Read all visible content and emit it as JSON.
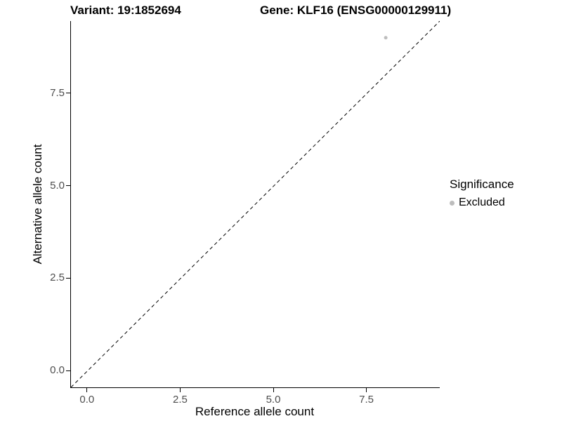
{
  "chart_data": {
    "type": "scatter",
    "title_left": "Variant: 19:1852694",
    "title_right": "Gene: KLF16 (ENSG00000129911)",
    "xlabel": "Reference allele count",
    "ylabel": "Alternative allele count",
    "xlim": [
      -0.45,
      9.45
    ],
    "ylim": [
      -0.45,
      9.45
    ],
    "grid": false,
    "x_ticks": [
      {
        "value": 0,
        "label": "0.0"
      },
      {
        "value": 2.5,
        "label": "2.5"
      },
      {
        "value": 5,
        "label": "5.0"
      },
      {
        "value": 7.5,
        "label": "7.5"
      }
    ],
    "y_ticks": [
      {
        "value": 0,
        "label": "0.0"
      },
      {
        "value": 2.5,
        "label": "2.5"
      },
      {
        "value": 5,
        "label": "5.0"
      },
      {
        "value": 7.5,
        "label": "7.5"
      }
    ],
    "series": [
      {
        "name": "Excluded",
        "color": "#bdbdbd",
        "points": [
          {
            "x": 8,
            "y": 9
          }
        ]
      }
    ],
    "identity_line": {
      "style": "dashed",
      "color": "#000000",
      "from": [
        -0.45,
        -0.45
      ],
      "to": [
        9.45,
        9.45
      ]
    },
    "legend": {
      "title": "Significance",
      "position": "right",
      "entries": [
        {
          "label": "Excluded",
          "color": "#bdbdbd"
        }
      ]
    }
  }
}
